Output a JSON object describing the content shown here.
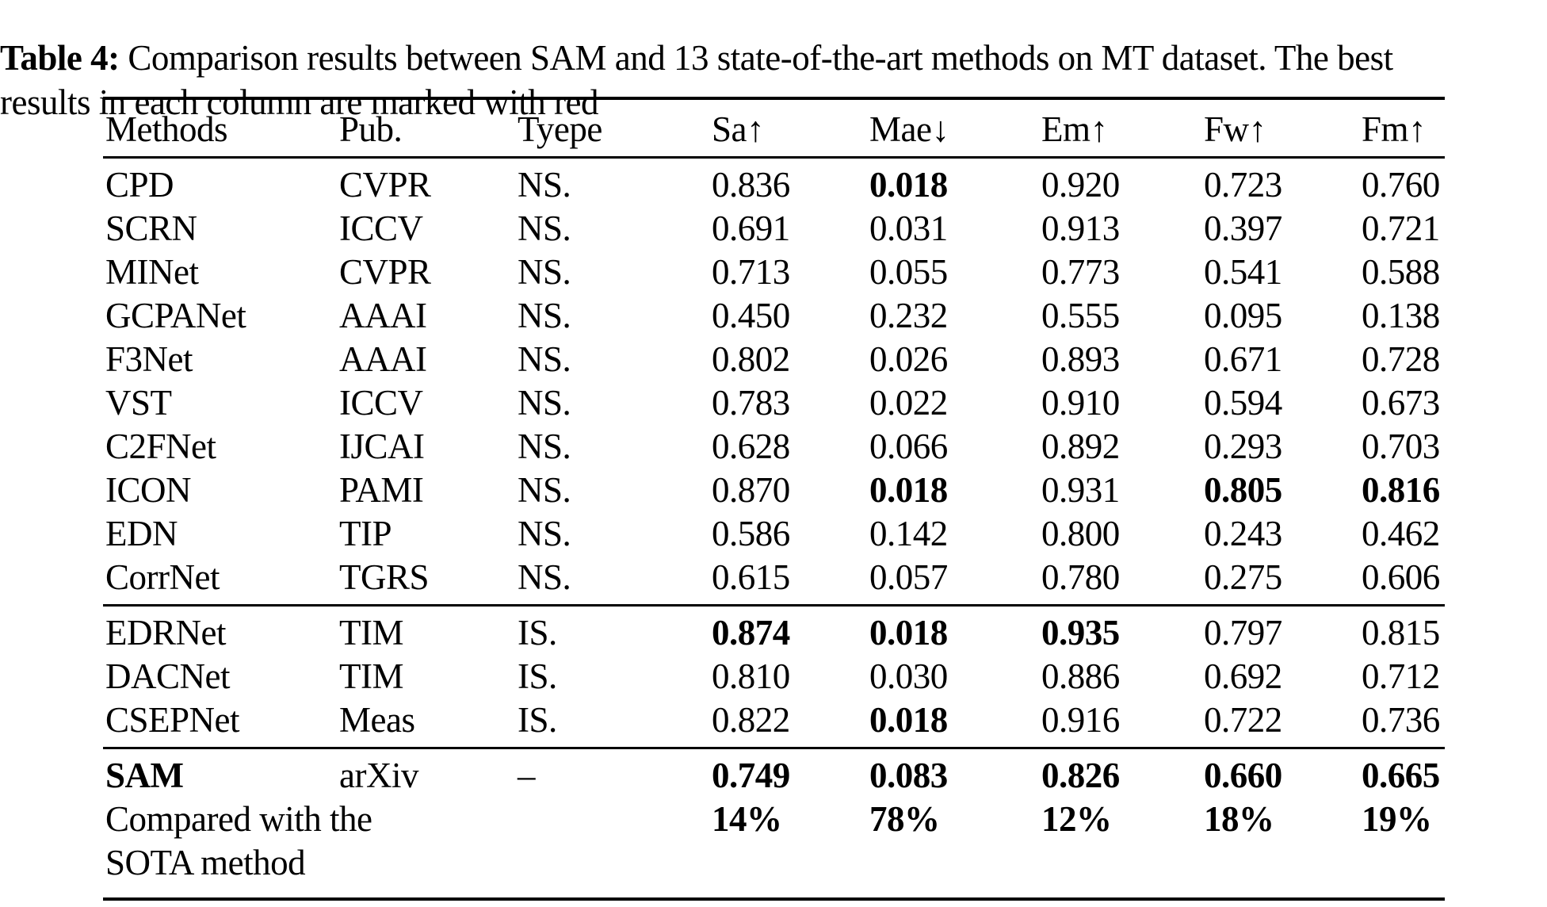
{
  "page": {
    "background_color": "#ffffff",
    "text_color": "#000000"
  },
  "caption": {
    "tag": "Table 4:",
    "line1": " Comparison results between SAM and 13 state-of-the-art methods on MT dataset. The best",
    "line2": "results in each column are marked with red"
  },
  "table": {
    "headers": [
      "Methods",
      "Pub.",
      "Tyepe",
      "Sa↑",
      "Mae↓",
      "Em↑",
      "Fw↑",
      "Fm↑"
    ],
    "groups": [
      {
        "name": "ns-methods",
        "rows": [
          {
            "method": "CPD",
            "method_bold": false,
            "pub": "CVPR",
            "type": "NS.",
            "cells": [
              "0.836",
              "0.018",
              "0.920",
              "0.723",
              "0.760"
            ],
            "bold": [
              false,
              true,
              false,
              false,
              false
            ]
          },
          {
            "method": "SCRN",
            "method_bold": false,
            "pub": "ICCV",
            "type": "NS.",
            "cells": [
              "0.691",
              "0.031",
              "0.913",
              "0.397",
              "0.721"
            ],
            "bold": [
              false,
              false,
              false,
              false,
              false
            ]
          },
          {
            "method": "MINet",
            "method_bold": false,
            "pub": "CVPR",
            "type": "NS.",
            "cells": [
              "0.713",
              "0.055",
              "0.773",
              "0.541",
              "0.588"
            ],
            "bold": [
              false,
              false,
              false,
              false,
              false
            ]
          },
          {
            "method": "GCPANet",
            "method_bold": false,
            "pub": "AAAI",
            "type": "NS.",
            "cells": [
              "0.450",
              "0.232",
              "0.555",
              "0.095",
              "0.138"
            ],
            "bold": [
              false,
              false,
              false,
              false,
              false
            ]
          },
          {
            "method": "F3Net",
            "method_bold": false,
            "pub": "AAAI",
            "type": "NS.",
            "cells": [
              "0.802",
              "0.026",
              "0.893",
              "0.671",
              "0.728"
            ],
            "bold": [
              false,
              false,
              false,
              false,
              false
            ]
          },
          {
            "method": "VST",
            "method_bold": false,
            "pub": "ICCV",
            "type": "NS.",
            "cells": [
              "0.783",
              "0.022",
              "0.910",
              "0.594",
              "0.673"
            ],
            "bold": [
              false,
              false,
              false,
              false,
              false
            ]
          },
          {
            "method": "C2FNet",
            "method_bold": false,
            "pub": "IJCAI",
            "type": "NS.",
            "cells": [
              "0.628",
              "0.066",
              "0.892",
              "0.293",
              "0.703"
            ],
            "bold": [
              false,
              false,
              false,
              false,
              false
            ]
          },
          {
            "method": "ICON",
            "method_bold": false,
            "pub": "PAMI",
            "type": "NS.",
            "cells": [
              "0.870",
              "0.018",
              "0.931",
              "0.805",
              "0.816"
            ],
            "bold": [
              false,
              true,
              false,
              true,
              true
            ]
          },
          {
            "method": "EDN",
            "method_bold": false,
            "pub": "TIP",
            "type": "NS.",
            "cells": [
              "0.586",
              "0.142",
              "0.800",
              "0.243",
              "0.462"
            ],
            "bold": [
              false,
              false,
              false,
              false,
              false
            ]
          },
          {
            "method": "CorrNet",
            "method_bold": false,
            "pub": "TGRS",
            "type": "NS.",
            "cells": [
              "0.615",
              "0.057",
              "0.780",
              "0.275",
              "0.606"
            ],
            "bold": [
              false,
              false,
              false,
              false,
              false
            ]
          }
        ]
      },
      {
        "name": "is-methods",
        "rows": [
          {
            "method": "EDRNet",
            "method_bold": false,
            "pub": "TIM",
            "type": "IS.",
            "cells": [
              "0.874",
              "0.018",
              "0.935",
              "0.797",
              "0.815"
            ],
            "bold": [
              true,
              true,
              true,
              false,
              false
            ]
          },
          {
            "method": "DACNet",
            "method_bold": false,
            "pub": "TIM",
            "type": "IS.",
            "cells": [
              "0.810",
              "0.030",
              "0.886",
              "0.692",
              "0.712"
            ],
            "bold": [
              false,
              false,
              false,
              false,
              false
            ]
          },
          {
            "method": "CSEPNet",
            "method_bold": false,
            "pub": "Meas",
            "type": "IS.",
            "cells": [
              "0.822",
              "0.018",
              "0.916",
              "0.722",
              "0.736"
            ],
            "bold": [
              false,
              true,
              false,
              false,
              false
            ]
          }
        ]
      },
      {
        "name": "sam-summary",
        "rows": [
          {
            "method": "SAM",
            "method_bold": true,
            "pub": "arXiv",
            "type": "–",
            "cells": [
              "0.749",
              "0.083",
              "0.826",
              "0.660",
              "0.665"
            ],
            "bold": [
              true,
              true,
              true,
              true,
              true
            ]
          },
          {
            "method": "Compared with the",
            "method_bold": false,
            "pub": "",
            "type": "",
            "cells": [
              "14%",
              "78%",
              "12%",
              "18%",
              "19%"
            ],
            "bold": [
              true,
              true,
              true,
              true,
              true
            ]
          },
          {
            "method": "SOTA method",
            "method_bold": false,
            "pub": "",
            "type": "",
            "cells": [
              "",
              "",
              "",
              "",
              ""
            ],
            "bold": [
              false,
              false,
              false,
              false,
              false
            ]
          }
        ]
      }
    ]
  }
}
